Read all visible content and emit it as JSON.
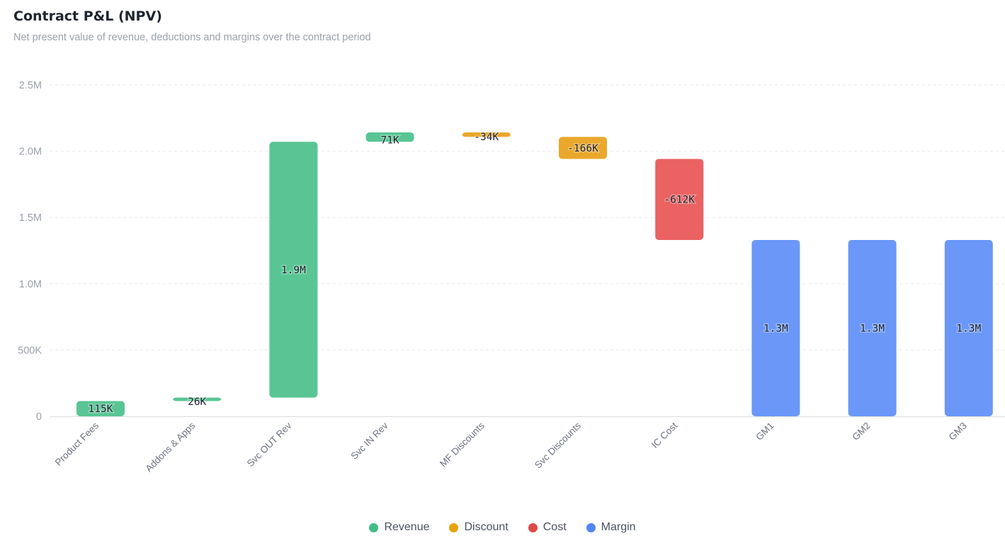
{
  "header": {
    "title": "Contract P&L (NPV)",
    "subtitle": "Net present value of revenue, deductions and margins over the contract period"
  },
  "colors": {
    "Revenue": "#59c594",
    "Discount": "#eaa72b",
    "Cost": "#ea6262",
    "Margin": "#6a97f8"
  },
  "legend_swatch_colors": {
    "Revenue": "#3dbd85",
    "Discount": "#e8a20c",
    "Cost": "#e04848",
    "Margin": "#4f86f7"
  },
  "chart_data": {
    "type": "bar",
    "subtype": "waterfall",
    "title": "Contract P&L (NPV)",
    "subtitle": "Net present value of revenue, deductions and margins over the contract period",
    "ylim": [
      0,
      2500000
    ],
    "y_ticks": [
      0,
      500000,
      1000000,
      1500000,
      2000000,
      2500000
    ],
    "y_tick_labels": [
      "0",
      "500K",
      "1.0M",
      "1.5M",
      "2.0M",
      "2.5M"
    ],
    "grid": true,
    "legend_position": "bottom-center",
    "legend": [
      "Revenue",
      "Discount",
      "Cost",
      "Margin"
    ],
    "bars": [
      {
        "category": "Product Fees",
        "group": "Revenue",
        "base": 0,
        "top": 115000,
        "label": "115K"
      },
      {
        "category": "Addons & Apps",
        "group": "Revenue",
        "base": 115000,
        "top": 141000,
        "label": "26K"
      },
      {
        "category": "Svc OUT Rev",
        "group": "Revenue",
        "base": 141000,
        "top": 2071000,
        "label": "1.9M"
      },
      {
        "category": "Svc IN Rev",
        "group": "Revenue",
        "base": 2071000,
        "top": 2142000,
        "label": "71K"
      },
      {
        "category": "MF Discounts",
        "group": "Discount",
        "base": 2108000,
        "top": 2142000,
        "label": "-34K"
      },
      {
        "category": "Svc Discounts",
        "group": "Discount",
        "base": 1942000,
        "top": 2108000,
        "label": "-166K"
      },
      {
        "category": "IC Cost",
        "group": "Cost",
        "base": 1330000,
        "top": 1942000,
        "label": "-612K"
      },
      {
        "category": "GM1",
        "group": "Margin",
        "base": 0,
        "top": 1330000,
        "label": "1.3M"
      },
      {
        "category": "GM2",
        "group": "Margin",
        "base": 0,
        "top": 1330000,
        "label": "1.3M"
      },
      {
        "category": "GM3",
        "group": "Margin",
        "base": 0,
        "top": 1330000,
        "label": "1.3M"
      }
    ]
  }
}
